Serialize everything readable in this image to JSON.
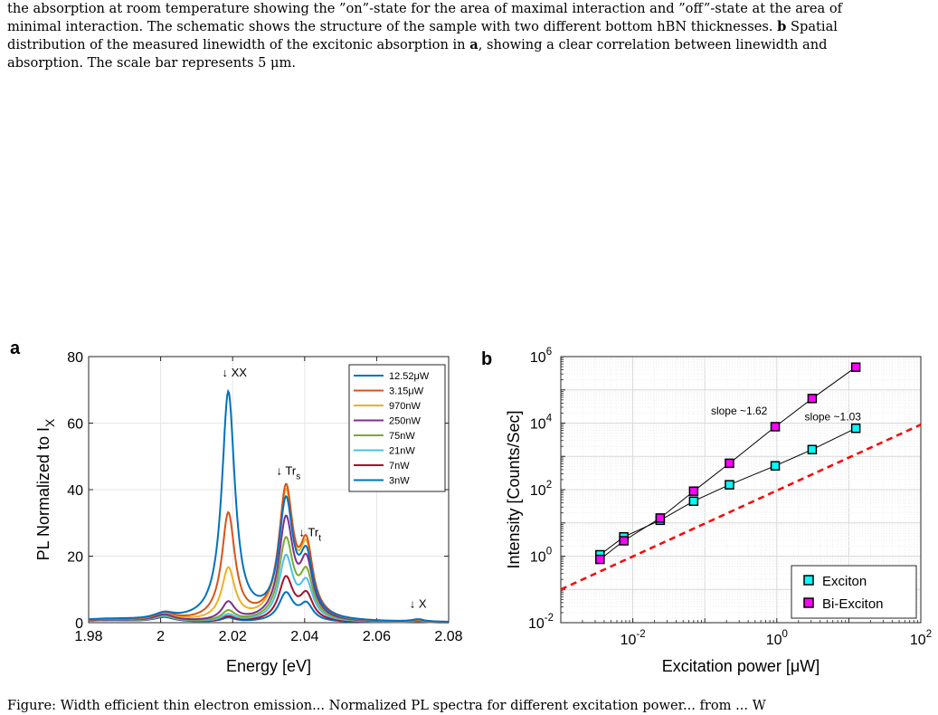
{
  "caption": {
    "line1": "the absorption at room temperature showing the ”on”-state for the area of maximal interaction and ”off”-state at the area of",
    "line2": "minimal interaction. The schematic shows the structure of the sample with two different bottom hBN thicknesses.",
    "bold_b": "b",
    "line2_tail": "Spatial",
    "line3_pre": "distribution of the measured linewidth of the excitonic absorption in",
    "bold_a": "a",
    "line3_post": ", showing a clear correlation between linewidth and",
    "line4": "absorption. The scale bar represents 5 μm."
  },
  "footer_text": "Figure: Width efficient thin electron emission... Normalized PL spectra for different excitation power... from ... W",
  "panel_labels": {
    "a": "a",
    "b": "b"
  },
  "chart_data": [
    {
      "type": "line",
      "panel": "a",
      "xlabel": "Energy [eV]",
      "ylabel": "PL Normalized to I",
      "ylabel_sub": "X",
      "xlim": [
        1.98,
        2.08
      ],
      "ylim": [
        0,
        80
      ],
      "xticks": [
        1.98,
        2.0,
        2.02,
        2.04,
        2.06,
        2.08
      ],
      "xtick_labels": [
        "1.98",
        "2",
        "2.02",
        "2.04",
        "2.06",
        "2.08"
      ],
      "yticks": [
        0,
        20,
        40,
        60,
        80
      ],
      "ytick_labels": [
        "0",
        "20",
        "40",
        "60",
        "80"
      ],
      "grid": true,
      "legend_position": "top-right",
      "annotations": [
        {
          "text": "↓ XX",
          "x": 2.0205,
          "y": 74
        },
        {
          "text": "↓ Tr",
          "sub": "s",
          "x": 2.0355,
          "y": 44.5
        },
        {
          "text": "↓ Tr",
          "sub": "t",
          "x": 2.0415,
          "y": 26
        },
        {
          "text": "↓ X",
          "x": 2.0715,
          "y": 4.5
        }
      ],
      "series": [
        {
          "name": "12.52μW",
          "color": "#0072bd",
          "peaks": [
            0.8,
            1.8,
            68.5,
            34.5,
            17.0,
            0.7
          ]
        },
        {
          "name": "3.15μW",
          "color": "#d95319",
          "peaks": [
            0.8,
            2.2,
            32.0,
            38.5,
            20.0,
            0.6
          ]
        },
        {
          "name": "970nW",
          "color": "#edb120",
          "peaks": [
            0.8,
            2.4,
            15.5,
            37.5,
            19.0,
            0.5
          ]
        },
        {
          "name": "250nW",
          "color": "#7e2f8e",
          "peaks": [
            0.7,
            2.0,
            5.5,
            30.0,
            16.0,
            0.4
          ]
        },
        {
          "name": "75nW",
          "color": "#77ac30",
          "peaks": [
            0.7,
            1.8,
            3.0,
            24.0,
            13.0,
            0.3
          ]
        },
        {
          "name": "21nW",
          "color": "#4dbeee",
          "peaks": [
            0.6,
            1.6,
            2.0,
            19.0,
            10.5,
            0.3
          ]
        },
        {
          "name": "7nW",
          "color": "#a2142f",
          "peaks": [
            0.6,
            1.5,
            1.5,
            13.0,
            7.5,
            0.25
          ]
        },
        {
          "name": "3nW",
          "color": "#0072bd",
          "peaks": [
            0.6,
            1.4,
            1.2,
            8.5,
            5.0,
            0.3
          ]
        }
      ]
    },
    {
      "type": "scatter",
      "panel": "b",
      "xlabel": "Excitation power [μW]",
      "ylabel": "Intensity [Counts/Sec]",
      "xscale": "log",
      "yscale": "log",
      "xlim": [
        0.001,
        100
      ],
      "ylim": [
        0.01,
        1000000
      ],
      "xticks": [
        0.01,
        1,
        100
      ],
      "xtick_base": [
        "10",
        "10",
        "10"
      ],
      "xtick_exp": [
        "-2",
        "0",
        "2"
      ],
      "yticks": [
        0.01,
        1,
        100,
        10000,
        1000000
      ],
      "ytick_base": [
        "10",
        "10",
        "10",
        "10",
        "10"
      ],
      "ytick_exp": [
        "-2",
        "0",
        "2",
        "4",
        "6"
      ],
      "grid": true,
      "legend_position": "bottom-right",
      "annotations": [
        {
          "text": "slope ~1.62",
          "x": 0.3,
          "y": 18000
        },
        {
          "text": "slope ~1.03",
          "x": 6.0,
          "y": 12000
        }
      ],
      "reference_line": {
        "color": "#ff0000",
        "x": [
          0.001,
          100
        ],
        "y": [
          0.1,
          9000
        ]
      },
      "series": [
        {
          "name": "Exciton",
          "color": "#00ffff",
          "x": [
            0.0035,
            0.0075,
            0.024,
            0.07,
            0.22,
            0.95,
            3.1,
            12.5
          ],
          "y": [
            1.1,
            3.8,
            12,
            45,
            140,
            520,
            1600,
            7000
          ]
        },
        {
          "name": "Bi-Exciton",
          "color": "#ff00ff",
          "x": [
            0.0035,
            0.0075,
            0.024,
            0.07,
            0.22,
            0.95,
            3.1,
            12.5
          ],
          "y": [
            0.8,
            2.9,
            14,
            90,
            620,
            7800,
            55000,
            480000
          ]
        }
      ]
    }
  ]
}
